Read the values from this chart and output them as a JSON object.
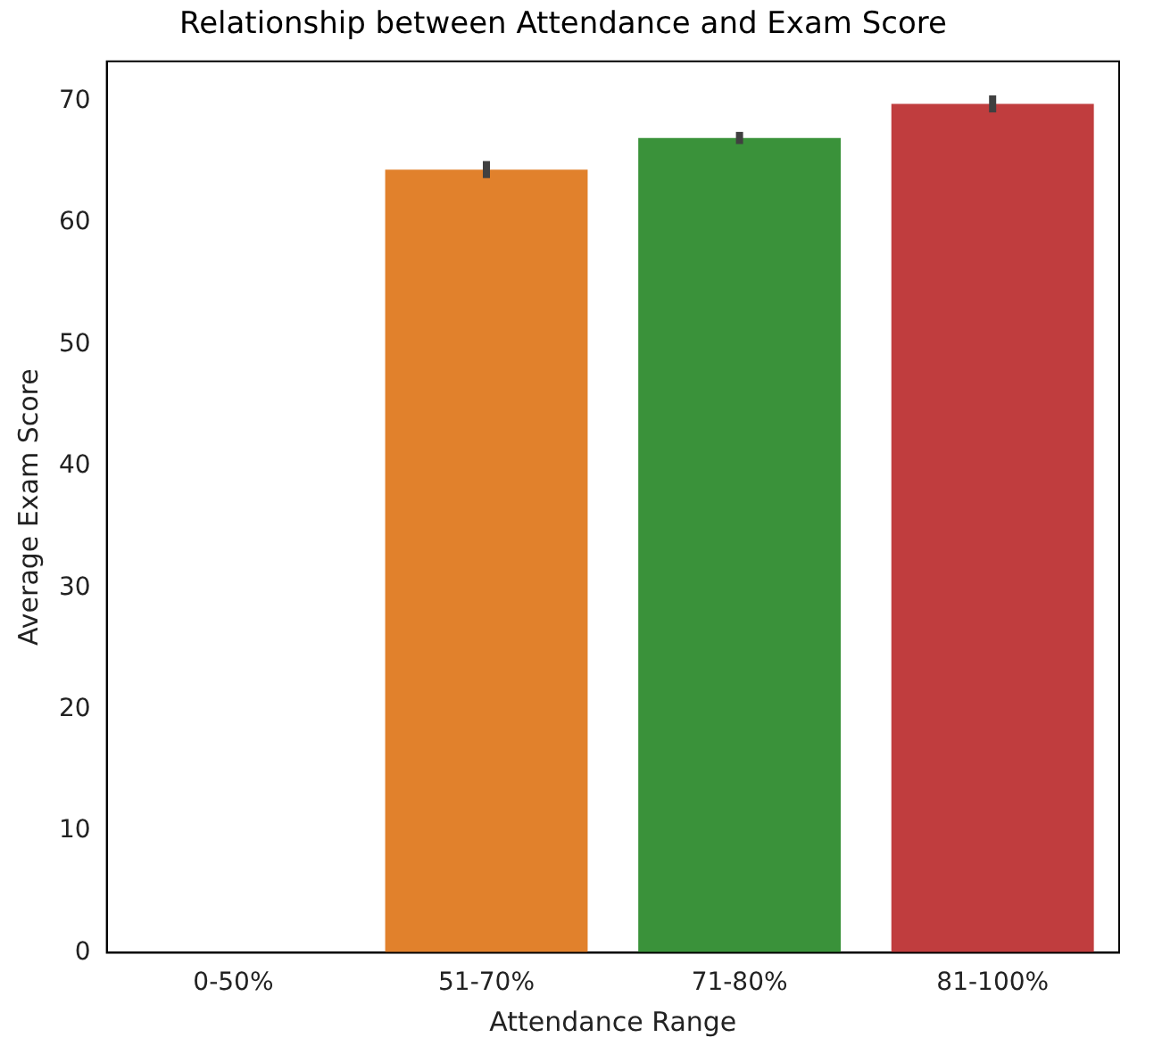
{
  "chart_data": {
    "type": "bar",
    "title": "Relationship between Attendance and Exam Score",
    "xlabel": "Attendance Range",
    "ylabel": "Average Exam Score",
    "categories": [
      "0-50%",
      "51-70%",
      "71-80%",
      "81-100%"
    ],
    "values": [
      null,
      64.4,
      67.0,
      69.8
    ],
    "colors": [
      "#3274a1",
      "#e1812c",
      "#3a923a",
      "#c03d3e"
    ],
    "errors": [
      null,
      0.7,
      0.5,
      0.7
    ],
    "ylim": [
      0,
      73.3
    ],
    "yticks": [
      0,
      10,
      20,
      30,
      40,
      50,
      60,
      70
    ],
    "grid": false,
    "legend": false
  }
}
